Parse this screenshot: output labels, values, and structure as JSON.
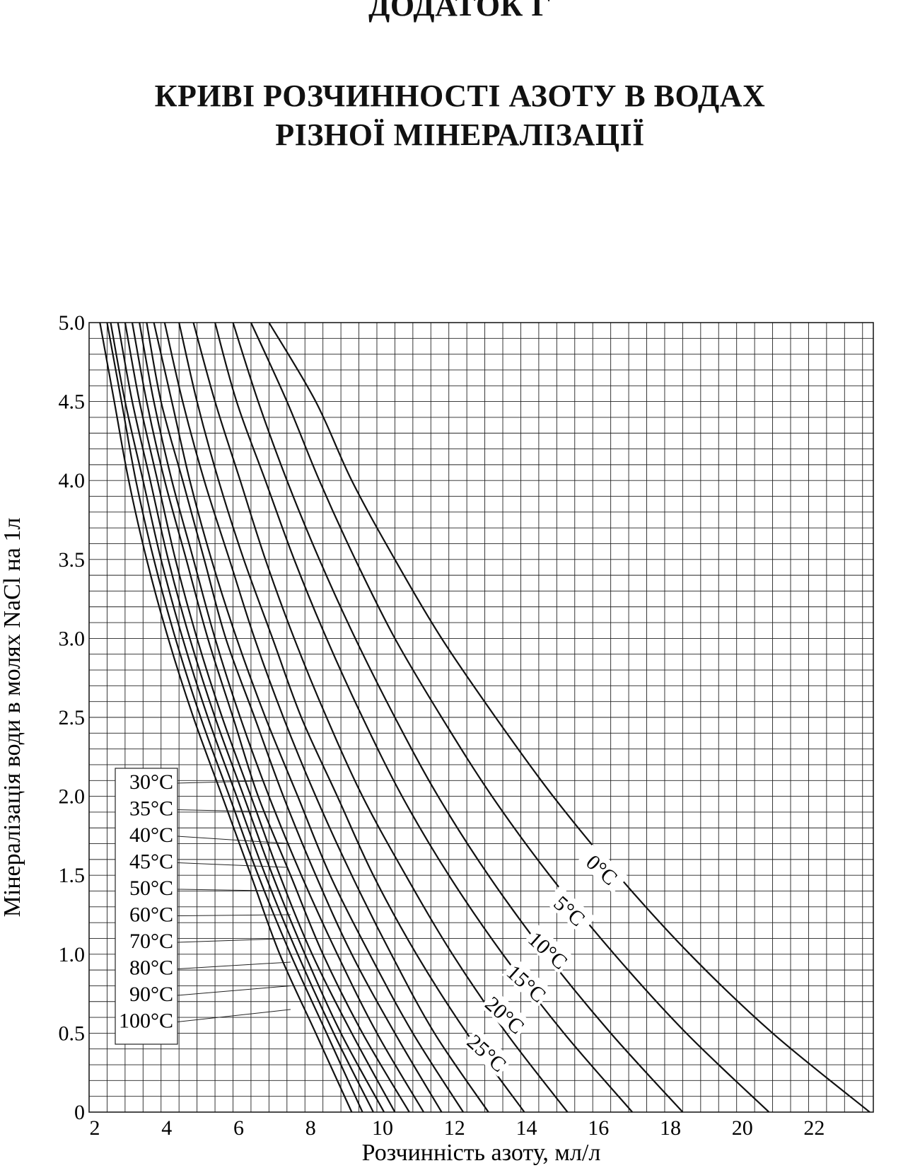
{
  "page": {
    "heading": "ДОДАТОК Г",
    "title_line1": "КРИВІ РОЗЧИННОСТІ АЗОТУ В ВОДАХ",
    "title_line2": "РІЗНОЇ МІНЕРАЛІЗАЦІЇ"
  },
  "chart_data": {
    "type": "line",
    "title": "КРИВІ РОЗЧИННОСТІ АЗОТУ В ВОДАХ РІЗНОЇ МІНЕРАЛІЗАЦІЇ",
    "xlabel": "Розчинність азоту, мл/л",
    "ylabel": "Мінералізація води в молях NaCl на 1л",
    "xlim": [
      2,
      23.8
    ],
    "ylim": [
      0,
      5.0
    ],
    "x_ticks": [
      "2",
      "4",
      "6",
      "8",
      "10",
      "12",
      "14",
      "16",
      "18",
      "20",
      "22"
    ],
    "y_ticks": [
      "0",
      "0.5",
      "1.0",
      "1.5",
      "2.0",
      "2.5",
      "3.0",
      "3.5",
      "4.0",
      "4.5",
      "5.0"
    ],
    "grid": true,
    "series": [
      {
        "name": "0°C",
        "values": [
          [
            23.7,
            0
          ],
          [
            21.0,
            0.5
          ],
          [
            18.7,
            1.0
          ],
          [
            16.7,
            1.5
          ],
          [
            14.9,
            2.0
          ],
          [
            13.3,
            2.5
          ],
          [
            11.8,
            3.0
          ],
          [
            10.5,
            3.5
          ],
          [
            9.3,
            4.0
          ],
          [
            8.3,
            4.5
          ],
          [
            7.0,
            5.0
          ]
        ]
      },
      {
        "name": "5°C",
        "values": [
          [
            20.9,
            0
          ],
          [
            18.6,
            0.5
          ],
          [
            16.6,
            1.0
          ],
          [
            14.8,
            1.5
          ],
          [
            13.2,
            2.0
          ],
          [
            11.8,
            2.5
          ],
          [
            10.5,
            3.0
          ],
          [
            9.4,
            3.5
          ],
          [
            8.4,
            4.0
          ],
          [
            7.5,
            4.5
          ],
          [
            6.5,
            5.0
          ]
        ]
      },
      {
        "name": "10°C",
        "values": [
          [
            18.5,
            0
          ],
          [
            16.5,
            0.5
          ],
          [
            14.7,
            1.0
          ],
          [
            13.1,
            1.5
          ],
          [
            11.7,
            2.0
          ],
          [
            10.5,
            2.5
          ],
          [
            9.4,
            3.0
          ],
          [
            8.4,
            3.5
          ],
          [
            7.5,
            4.0
          ],
          [
            6.7,
            4.5
          ],
          [
            6.0,
            5.0
          ]
        ]
      },
      {
        "name": "15°C",
        "values": [
          [
            17.1,
            0
          ],
          [
            15.2,
            0.5
          ],
          [
            13.5,
            1.0
          ],
          [
            12.0,
            1.5
          ],
          [
            10.7,
            2.0
          ],
          [
            9.6,
            2.5
          ],
          [
            8.6,
            3.0
          ],
          [
            7.7,
            3.5
          ],
          [
            6.9,
            4.0
          ],
          [
            6.1,
            4.5
          ],
          [
            5.5,
            5.0
          ]
        ]
      },
      {
        "name": "20°C",
        "values": [
          [
            15.3,
            0
          ],
          [
            13.6,
            0.5
          ],
          [
            12.1,
            1.0
          ],
          [
            10.8,
            1.5
          ],
          [
            9.6,
            2.0
          ],
          [
            8.6,
            2.5
          ],
          [
            7.7,
            3.0
          ],
          [
            6.9,
            3.5
          ],
          [
            6.2,
            4.0
          ],
          [
            5.5,
            4.5
          ],
          [
            4.9,
            5.0
          ]
        ]
      },
      {
        "name": "25°C",
        "values": [
          [
            14.1,
            0
          ],
          [
            12.5,
            0.5
          ],
          [
            11.1,
            1.0
          ],
          [
            9.9,
            1.5
          ],
          [
            8.9,
            2.0
          ],
          [
            7.9,
            2.5
          ],
          [
            7.1,
            3.0
          ],
          [
            6.3,
            3.5
          ],
          [
            5.6,
            4.0
          ],
          [
            5.0,
            4.5
          ],
          [
            4.5,
            5.0
          ]
        ]
      },
      {
        "name": "30°C",
        "values": [
          [
            13.1,
            0
          ],
          [
            11.6,
            0.5
          ],
          [
            10.4,
            1.0
          ],
          [
            9.3,
            1.5
          ],
          [
            8.3,
            2.0
          ],
          [
            7.4,
            2.5
          ],
          [
            6.6,
            3.0
          ],
          [
            5.9,
            3.5
          ],
          [
            5.2,
            4.0
          ],
          [
            4.6,
            4.5
          ],
          [
            4.1,
            5.0
          ]
        ]
      },
      {
        "name": "35°C",
        "values": [
          [
            12.4,
            0
          ],
          [
            11.0,
            0.5
          ],
          [
            9.8,
            1.0
          ],
          [
            8.7,
            1.5
          ],
          [
            7.8,
            2.0
          ],
          [
            6.9,
            2.5
          ],
          [
            6.1,
            3.0
          ],
          [
            5.4,
            3.5
          ],
          [
            4.8,
            4.0
          ],
          [
            4.3,
            4.5
          ],
          [
            3.8,
            5.0
          ]
        ]
      },
      {
        "name": "40°C",
        "values": [
          [
            11.8,
            0
          ],
          [
            10.5,
            0.5
          ],
          [
            9.3,
            1.0
          ],
          [
            8.3,
            1.5
          ],
          [
            7.4,
            2.0
          ],
          [
            6.6,
            2.5
          ],
          [
            5.8,
            3.0
          ],
          [
            5.2,
            3.5
          ],
          [
            4.6,
            4.0
          ],
          [
            4.0,
            4.5
          ],
          [
            3.6,
            5.0
          ]
        ]
      },
      {
        "name": "45°C",
        "values": [
          [
            11.3,
            0
          ],
          [
            10.0,
            0.5
          ],
          [
            8.9,
            1.0
          ],
          [
            7.9,
            1.5
          ],
          [
            7.0,
            2.0
          ],
          [
            6.2,
            2.5
          ],
          [
            5.5,
            3.0
          ],
          [
            4.9,
            3.5
          ],
          [
            4.3,
            4.0
          ],
          [
            3.8,
            4.5
          ],
          [
            3.4,
            5.0
          ]
        ]
      },
      {
        "name": "50°C",
        "values": [
          [
            10.9,
            0
          ],
          [
            9.6,
            0.5
          ],
          [
            8.5,
            1.0
          ],
          [
            7.6,
            1.5
          ],
          [
            6.7,
            2.0
          ],
          [
            6.0,
            2.5
          ],
          [
            5.3,
            3.0
          ],
          [
            4.7,
            3.5
          ],
          [
            4.1,
            4.0
          ],
          [
            3.6,
            4.5
          ],
          [
            3.2,
            5.0
          ]
        ]
      },
      {
        "name": "60°C",
        "values": [
          [
            10.5,
            0
          ],
          [
            9.3,
            0.5
          ],
          [
            8.2,
            1.0
          ],
          [
            7.3,
            1.5
          ],
          [
            6.5,
            2.0
          ],
          [
            5.7,
            2.5
          ],
          [
            5.0,
            3.0
          ],
          [
            4.4,
            3.5
          ],
          [
            3.9,
            4.0
          ],
          [
            3.4,
            4.5
          ],
          [
            3.0,
            5.0
          ]
        ]
      },
      {
        "name": "70°C",
        "values": [
          [
            10.2,
            0
          ],
          [
            9.0,
            0.5
          ],
          [
            8.0,
            1.0
          ],
          [
            7.1,
            1.5
          ],
          [
            6.3,
            2.0
          ],
          [
            5.5,
            2.5
          ],
          [
            4.8,
            3.0
          ],
          [
            4.2,
            3.5
          ],
          [
            3.7,
            4.0
          ],
          [
            3.2,
            4.5
          ],
          [
            2.8,
            5.0
          ]
        ]
      },
      {
        "name": "80°C",
        "values": [
          [
            9.9,
            0
          ],
          [
            8.8,
            0.5
          ],
          [
            7.8,
            1.0
          ],
          [
            6.9,
            1.5
          ],
          [
            6.1,
            2.0
          ],
          [
            5.3,
            2.5
          ],
          [
            4.6,
            3.0
          ],
          [
            4.0,
            3.5
          ],
          [
            3.5,
            4.0
          ],
          [
            3.0,
            4.5
          ],
          [
            2.6,
            5.0
          ]
        ]
      },
      {
        "name": "90°C",
        "values": [
          [
            9.6,
            0
          ],
          [
            8.6,
            0.5
          ],
          [
            7.6,
            1.0
          ],
          [
            6.7,
            1.5
          ],
          [
            5.9,
            2.0
          ],
          [
            5.1,
            2.5
          ],
          [
            4.4,
            3.0
          ],
          [
            3.8,
            3.5
          ],
          [
            3.3,
            4.0
          ],
          [
            2.9,
            4.5
          ],
          [
            2.5,
            5.0
          ]
        ]
      },
      {
        "name": "100°C",
        "values": [
          [
            9.3,
            0
          ],
          [
            8.3,
            0.5
          ],
          [
            7.3,
            1.0
          ],
          [
            6.5,
            1.5
          ],
          [
            5.7,
            2.0
          ],
          [
            4.9,
            2.5
          ],
          [
            4.2,
            3.0
          ],
          [
            3.6,
            3.5
          ],
          [
            3.1,
            4.0
          ],
          [
            2.7,
            4.5
          ],
          [
            2.3,
            5.0
          ]
        ]
      }
    ],
    "labels_on_curves": [
      "0°C",
      "5°C",
      "10°C",
      "15°C",
      "20°C",
      "25°C"
    ],
    "legend_box": [
      "30°C",
      "35°C",
      "40°C",
      "45°C",
      "50°C",
      "60°C",
      "70°C",
      "80°C",
      "90°C",
      "100°C"
    ],
    "legend_placement": "bottom-left"
  }
}
